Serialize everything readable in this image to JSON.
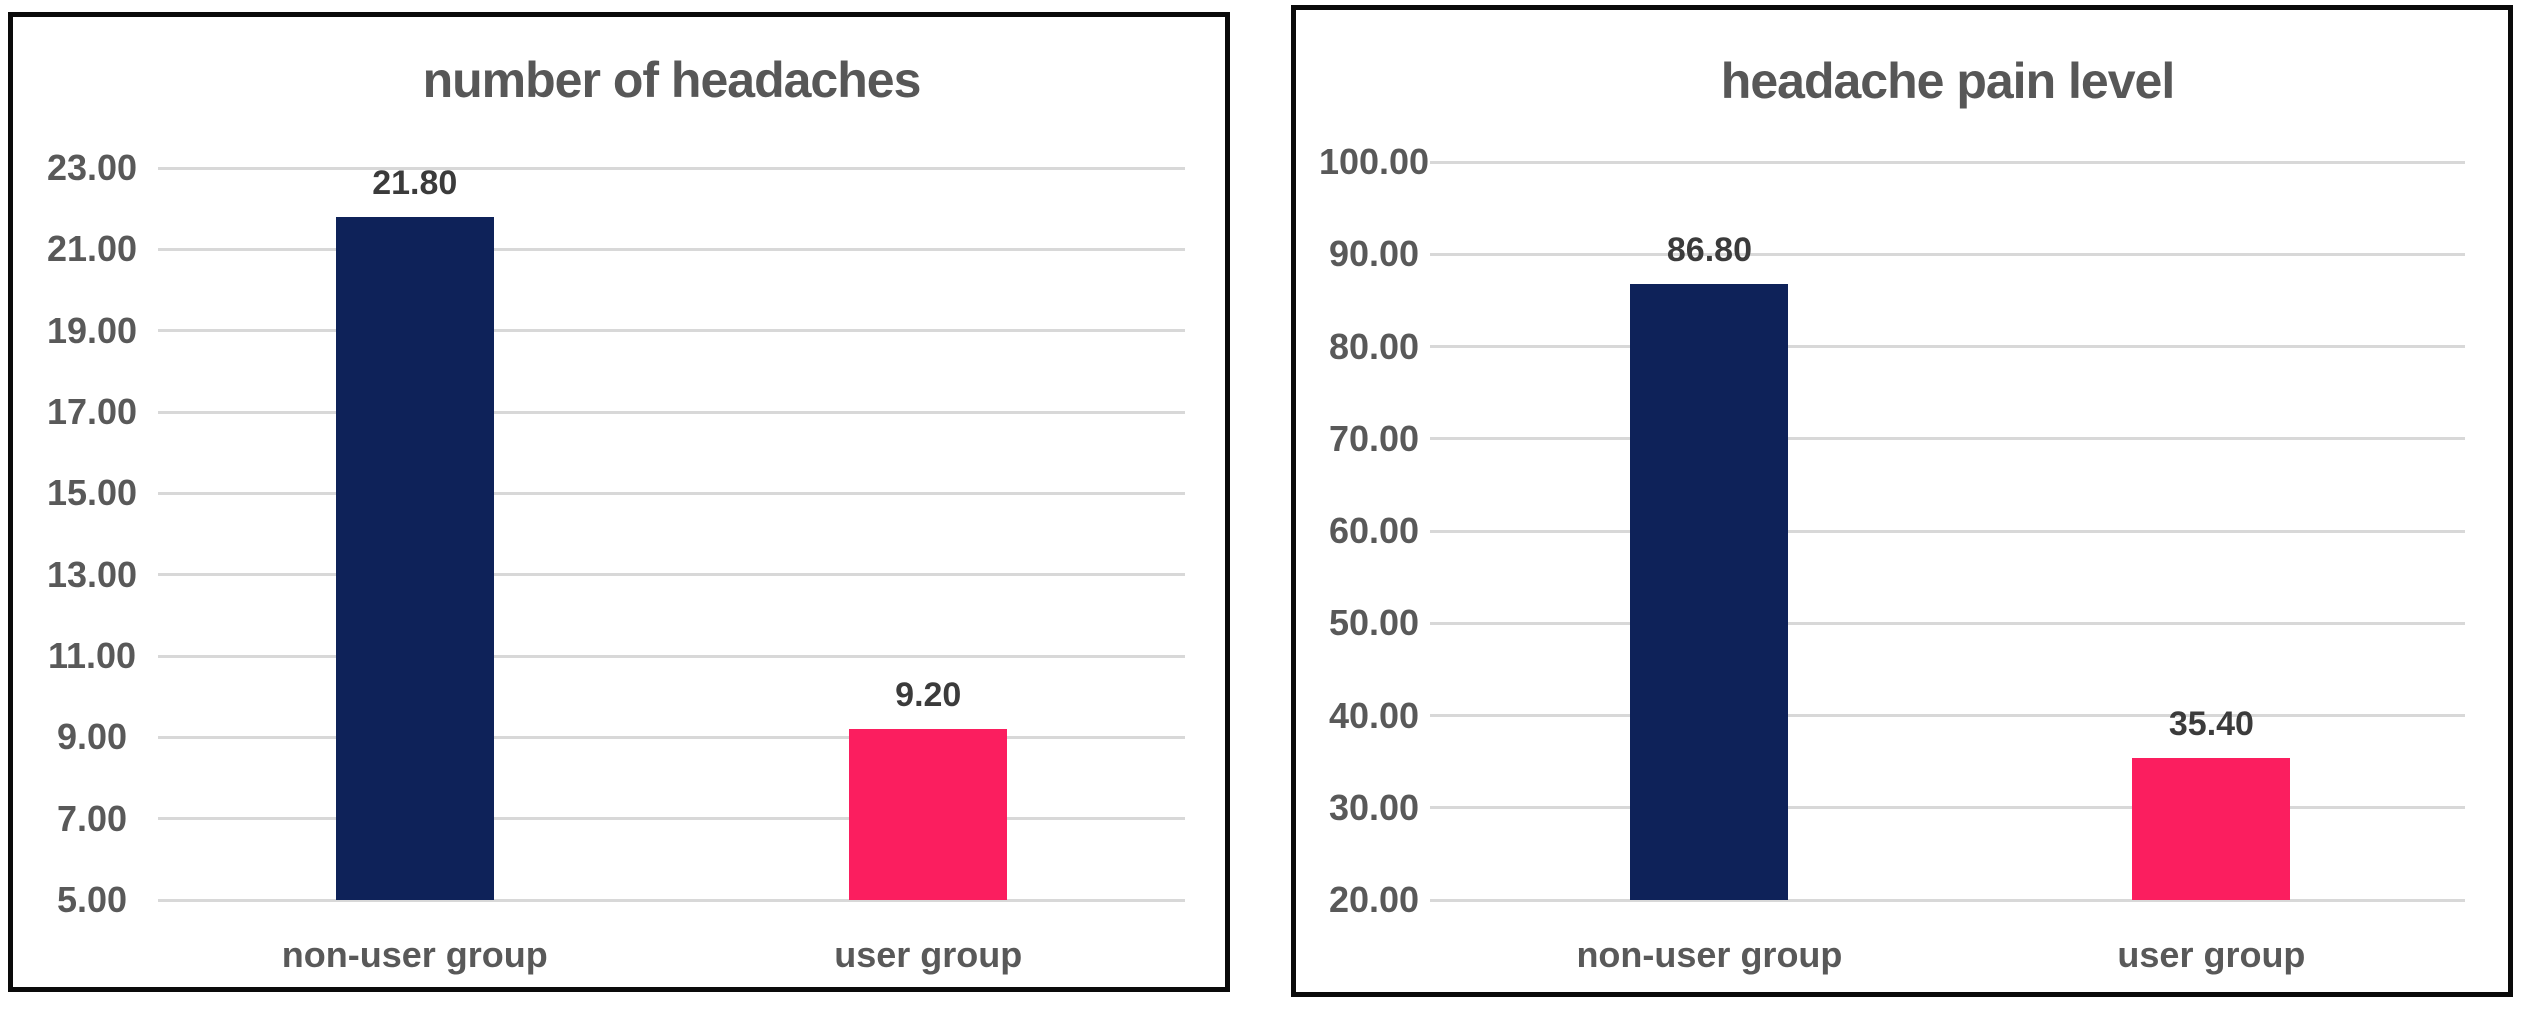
{
  "page": {
    "background": "#FFFFFF"
  },
  "colors": {
    "bar_navy": "#0E2259",
    "bar_pink": "#FB1E5F",
    "gridline": "#D8D8D8",
    "tick_text": "#595959",
    "title_text": "#575757",
    "value_text": "#3B3B3B",
    "panel_border": "#0A0A0A"
  },
  "chart_data": [
    {
      "type": "bar",
      "title": "number of headaches",
      "categories": [
        "non-user group",
        "user group"
      ],
      "values": [
        21.8,
        9.2
      ],
      "value_labels": [
        "21.80",
        "9.20"
      ],
      "bar_colors": [
        "#0E2259",
        "#FB1E5F"
      ],
      "xlabel": "",
      "ylabel": "",
      "ylim": [
        5,
        23
      ],
      "y_tick_step": 2,
      "y_tick_labels": [
        "23.00",
        "21.00",
        "19.00",
        "17.00",
        "15.00",
        "13.00",
        "11.00",
        "9.00",
        "7.00",
        "5.00"
      ],
      "grid": true,
      "legend": false
    },
    {
      "type": "bar",
      "title": "headache pain level",
      "categories": [
        "non-user group",
        "user group"
      ],
      "values": [
        86.8,
        35.4
      ],
      "value_labels": [
        "86.80",
        "35.40"
      ],
      "bar_colors": [
        "#0E2259",
        "#FB1E5F"
      ],
      "xlabel": "",
      "ylabel": "",
      "ylim": [
        20,
        100
      ],
      "y_tick_step": 10,
      "y_tick_labels": [
        "100.00",
        "90.00",
        "80.00",
        "70.00",
        "60.00",
        "50.00",
        "40.00",
        "30.00",
        "20.00"
      ],
      "grid": true,
      "legend": false
    }
  ]
}
